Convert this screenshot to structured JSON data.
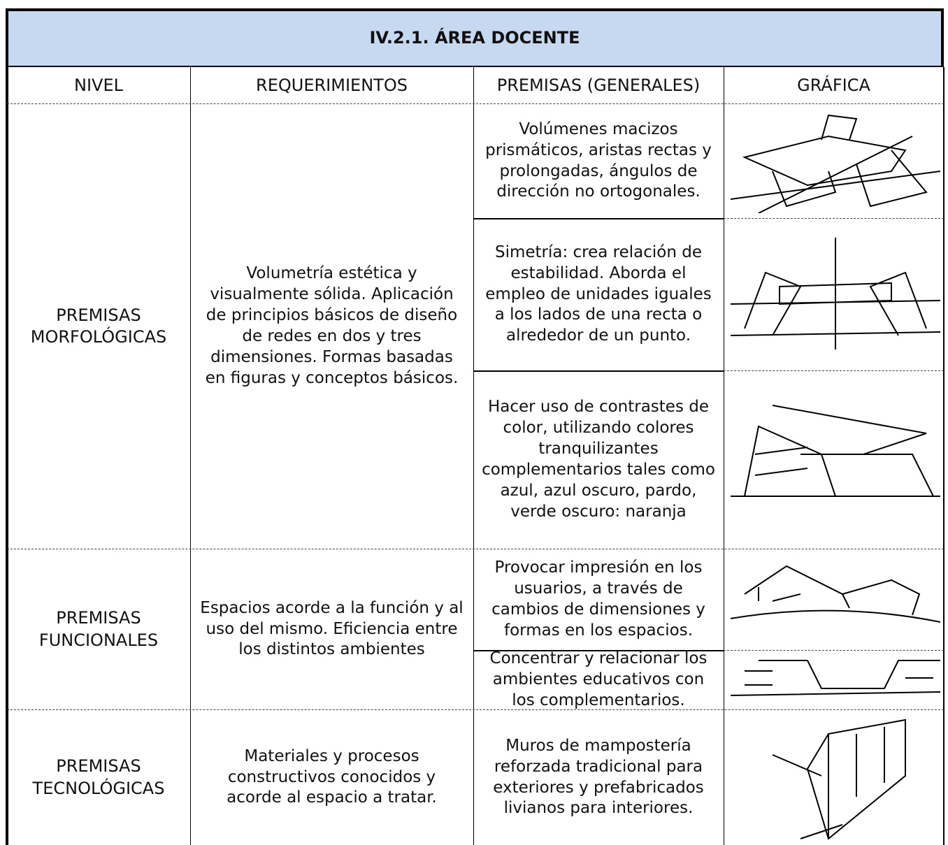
{
  "header": {
    "title": "IV.2.1. ÁREA DOCENTE"
  },
  "table": {
    "columns": [
      "NIVEL",
      "REQUERIMIENTOS",
      "PREMISAS (GENERALES)",
      "GRÁFICA"
    ],
    "rows": [
      {
        "nivel": "PREMISAS MORFOLÓGICAS",
        "requerimientos": "Volumetría estética y visualmente sólida. Aplicación de principios básicos de diseño de redes en dos y tres dimensiones. Formas basadas en figuras y conceptos básicos.",
        "premisas": [
          "Volúmenes macizos prismáticos, aristas rectas y prolongadas, ángulos de dirección no ortogonales.",
          "Simetría: crea relación de estabilidad. Aborda el empleo de unidades iguales a los lados de una recta o alrededor de un punto.",
          "Hacer uso de contrastes de color, utilizando colores tranquilizantes complementarios tales como azul, azul oscuro, pardo, verde oscuro: naranja"
        ]
      },
      {
        "nivel": "PREMISAS FUNCIONALES",
        "requerimientos": "Espacios acorde a la función y al uso del mismo. Eficiencia entre los distintos ambientes",
        "premisas": [
          "Provocar impresión en los usuarios, a través de cambios de dimensiones y formas en los espacios.",
          "Concentrar y relacionar los ambientes educativos con los complementarios."
        ]
      },
      {
        "nivel": "PREMISAS TECNOLÓGICAS",
        "requerimientos": "Materiales y procesos constructivos conocidos y acorde al espacio a tratar.",
        "premisas": [
          "Muros de mampostería reforzada tradicional para exteriores y prefabricados livianos para interiores."
        ]
      }
    ]
  }
}
